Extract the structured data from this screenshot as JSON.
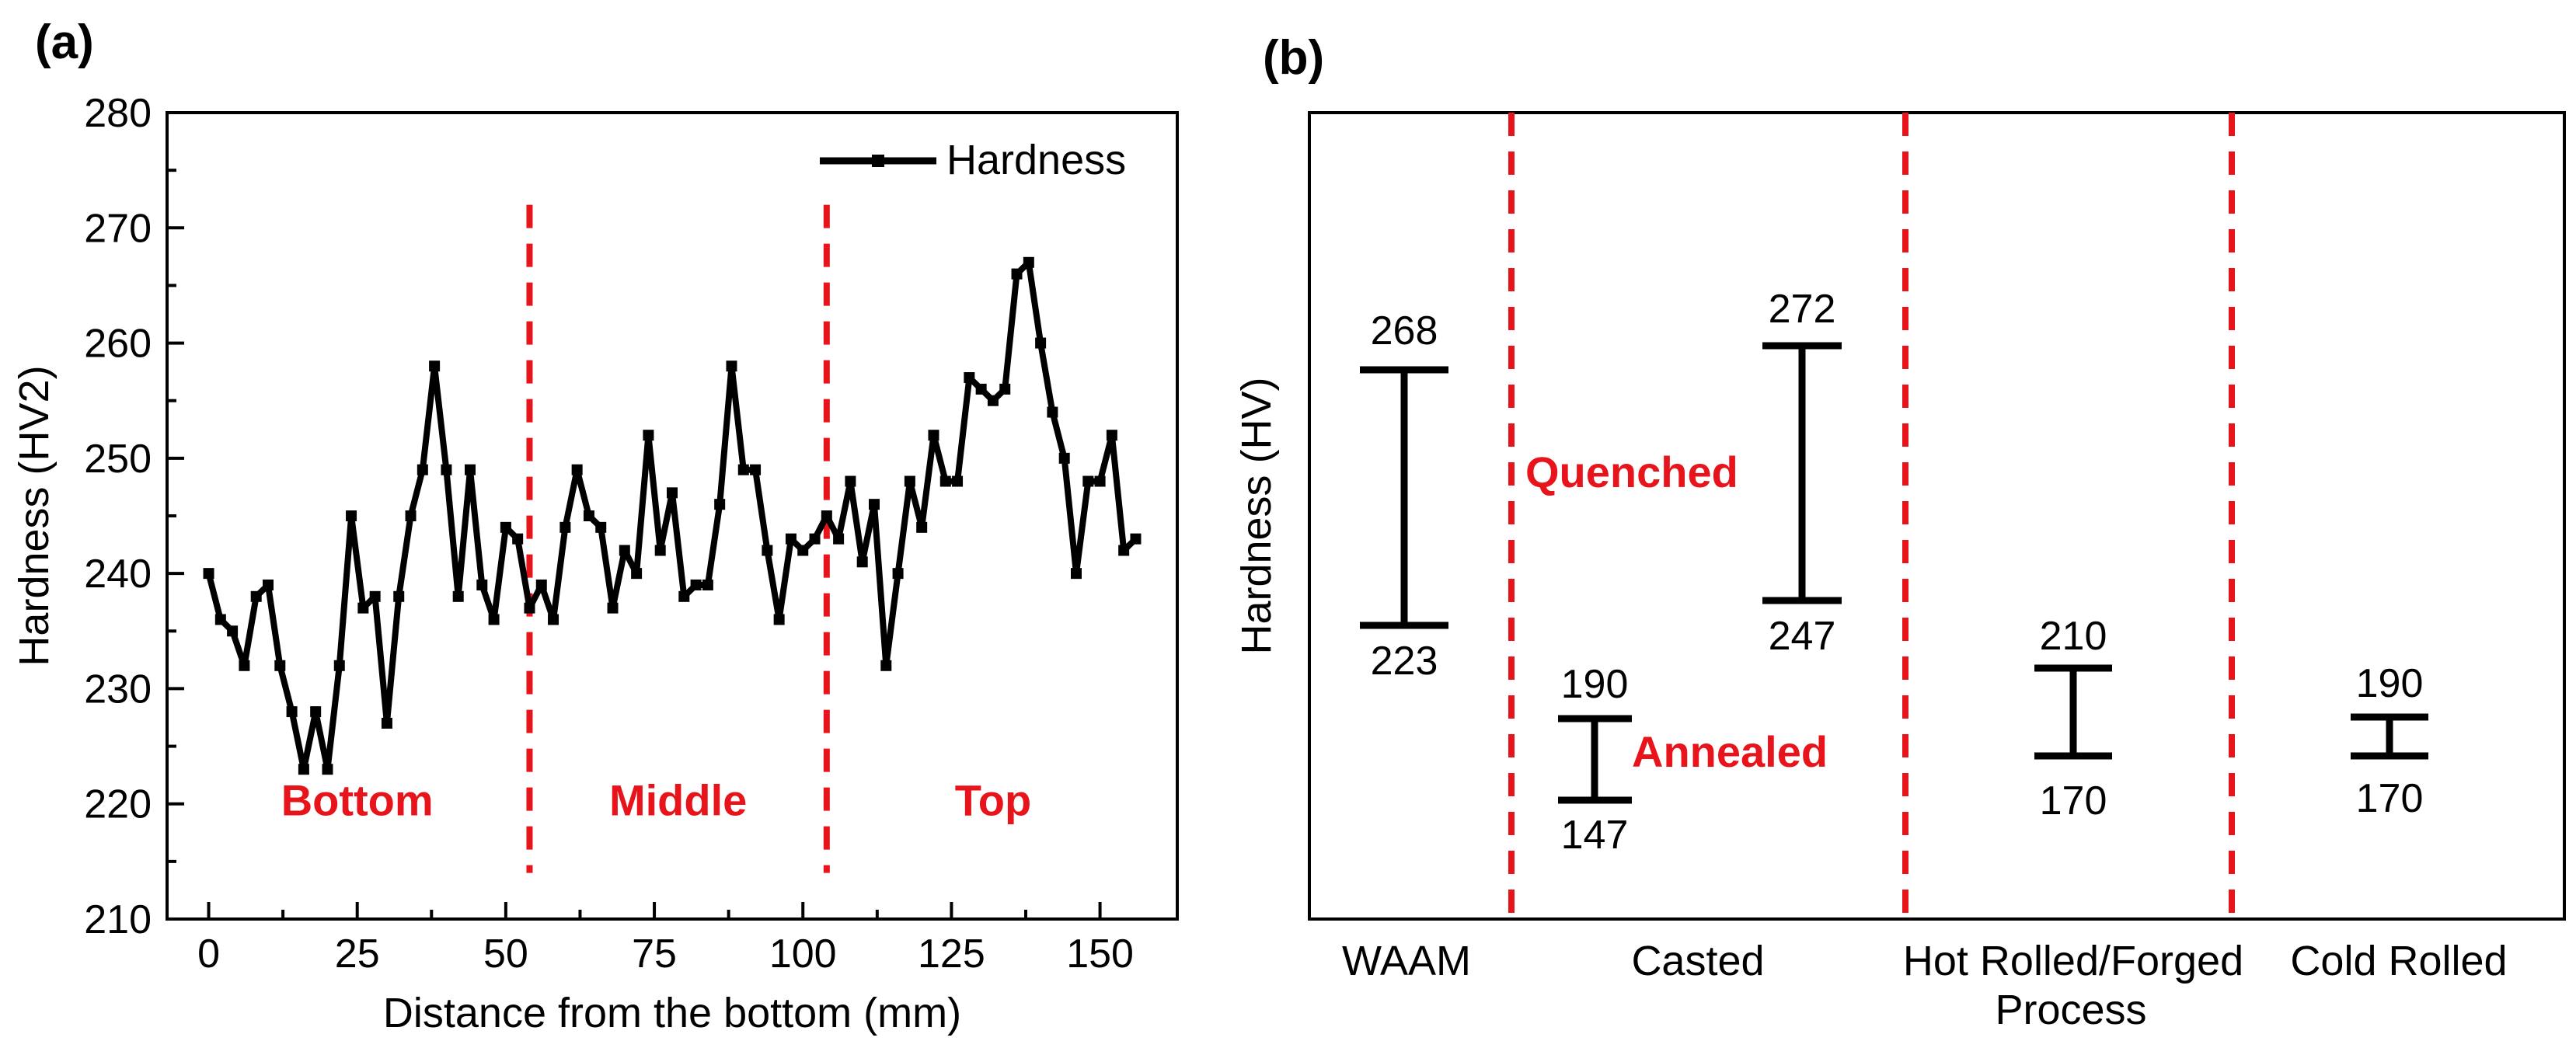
{
  "chart_data": [
    {
      "type": "line",
      "panel_label": "(a)",
      "xlabel": "Distance from the bottom (mm)",
      "ylabel": "Hardness (HV2)",
      "xlim": [
        -7,
        163
      ],
      "ylim": [
        210,
        280
      ],
      "xticks": [
        0,
        25,
        50,
        75,
        100,
        125,
        150
      ],
      "yticks": [
        210,
        220,
        230,
        240,
        250,
        260,
        270,
        280
      ],
      "legend": {
        "label": "Hardness",
        "placement": "top-right"
      },
      "series": [
        {
          "name": "Hardness",
          "color": "#000000",
          "x": [
            0,
            2,
            4,
            6,
            8,
            10,
            12,
            14,
            16,
            18,
            20,
            22,
            24,
            26,
            28,
            30,
            32,
            34,
            36,
            38,
            40,
            42,
            44,
            46,
            48,
            50,
            52,
            54,
            56,
            58,
            60,
            62,
            64,
            66,
            68,
            70,
            72,
            74,
            76,
            78,
            80,
            82,
            84,
            86,
            88,
            90,
            92,
            94,
            96,
            98,
            100,
            102,
            104,
            106,
            108,
            110,
            112,
            114,
            116,
            118,
            120,
            122,
            124,
            126,
            128,
            130,
            132,
            134,
            136,
            138,
            140,
            142,
            144,
            146,
            148,
            150,
            152,
            154,
            156
          ],
          "y": [
            240,
            236,
            235,
            232,
            238,
            239,
            232,
            228,
            223,
            228,
            223,
            232,
            245,
            237,
            238,
            227,
            238,
            245,
            249,
            258,
            249,
            238,
            249,
            239,
            236,
            244,
            243,
            237,
            239,
            236,
            244,
            249,
            245,
            244,
            237,
            242,
            240,
            252,
            242,
            247,
            238,
            239,
            239,
            246,
            258,
            249,
            249,
            242,
            236,
            243,
            242,
            243,
            245,
            243,
            248,
            241,
            246,
            232,
            240,
            248,
            244,
            252,
            248,
            248,
            257,
            256,
            255,
            256,
            266,
            267,
            260,
            254,
            250,
            240,
            248,
            248,
            252,
            242,
            243
          ]
        }
      ],
      "region_dividers_x": [
        54,
        104
      ],
      "region_labels": [
        {
          "text": "Bottom",
          "x": 25,
          "y": 219,
          "color": "#e8141b"
        },
        {
          "text": "Middle",
          "x": 79,
          "y": 219,
          "color": "#e8141b"
        },
        {
          "text": "Top",
          "x": 132,
          "y": 219,
          "color": "#e8141b"
        }
      ]
    },
    {
      "type": "range",
      "panel_label": "(b)",
      "xlabel": "Process",
      "ylabel": "Hardness (HV)",
      "categories": [
        "WAAM",
        "Casted",
        "Hot Rolled/Forged",
        "Cold Rolled"
      ],
      "ranges": [
        {
          "category": "WAAM",
          "min": 223,
          "max": 268,
          "max_label": "268",
          "min_label": "223"
        },
        {
          "category": "Casted",
          "state": "Annealed",
          "min": 147,
          "max": 190,
          "max_label": "190",
          "min_label": "147"
        },
        {
          "category": "Casted",
          "state": "Quenched",
          "min": 247,
          "max": 272,
          "max_label": "272",
          "min_label": "247"
        },
        {
          "category": "Hot Rolled/Forged",
          "min": 170,
          "max": 210,
          "max_label": "210",
          "min_label": "170"
        },
        {
          "category": "Cold Rolled",
          "min": 170,
          "max": 190,
          "max_label": "190",
          "min_label": "170"
        }
      ],
      "annotations": [
        {
          "text": "Quenched",
          "color": "#e8141b"
        },
        {
          "text": "Annealed",
          "color": "#e8141b"
        }
      ],
      "region_dividers": 3
    }
  ]
}
